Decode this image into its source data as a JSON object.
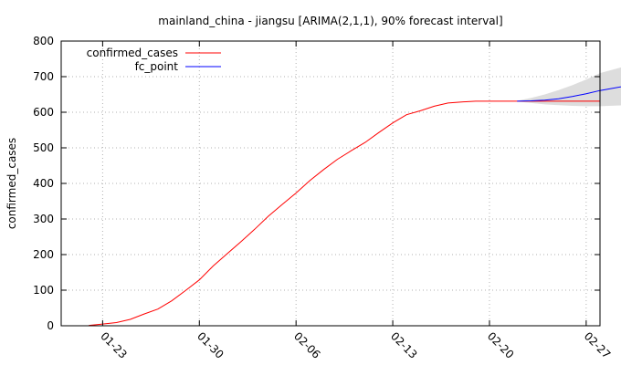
{
  "chart_data": {
    "type": "line",
    "title": "mainland_china - jiangsu [ARIMA(2,1,1), 90% forecast interval]",
    "xlabel": "",
    "ylabel": "confirmed_cases",
    "ylim": [
      0,
      800
    ],
    "yticks": [
      0,
      100,
      200,
      300,
      400,
      500,
      600,
      700,
      800
    ],
    "xlim": [
      "2020-01-20",
      "2020-02-28"
    ],
    "xticks": [
      "2020-01-23",
      "2020-01-30",
      "2020-02-06",
      "2020-02-13",
      "2020-02-20",
      "2020-02-27"
    ],
    "xtick_labels": [
      "01-23",
      "01-30",
      "02-06",
      "02-13",
      "02-20",
      "02-27"
    ],
    "grid": true,
    "legend_position": "top-left",
    "series": [
      {
        "name": "confirmed_cases",
        "color": "#ff0000",
        "points": [
          [
            "2020-01-22",
            1
          ],
          [
            "2020-01-23",
            5
          ],
          [
            "2020-01-24",
            9
          ],
          [
            "2020-01-25",
            18
          ],
          [
            "2020-01-26",
            33
          ],
          [
            "2020-01-27",
            47
          ],
          [
            "2020-01-28",
            70
          ],
          [
            "2020-01-29",
            99
          ],
          [
            "2020-01-30",
            129
          ],
          [
            "2020-01-31",
            168
          ],
          [
            "2020-02-01",
            202
          ],
          [
            "2020-02-02",
            236
          ],
          [
            "2020-02-03",
            271
          ],
          [
            "2020-02-04",
            308
          ],
          [
            "2020-02-05",
            341
          ],
          [
            "2020-02-06",
            373
          ],
          [
            "2020-02-07",
            408
          ],
          [
            "2020-02-08",
            439
          ],
          [
            "2020-02-09",
            468
          ],
          [
            "2020-02-10",
            492
          ],
          [
            "2020-02-11",
            515
          ],
          [
            "2020-02-12",
            543
          ],
          [
            "2020-02-13",
            570
          ],
          [
            "2020-02-14",
            593
          ],
          [
            "2020-02-15",
            604
          ],
          [
            "2020-02-16",
            617
          ],
          [
            "2020-02-17",
            626
          ],
          [
            "2020-02-18",
            629
          ],
          [
            "2020-02-19",
            631
          ],
          [
            "2020-02-20",
            631
          ],
          [
            "2020-02-21",
            631
          ],
          [
            "2020-02-22",
            631
          ],
          [
            "2020-02-23",
            631
          ],
          [
            "2020-02-24",
            631
          ],
          [
            "2020-02-25",
            631
          ],
          [
            "2020-02-26",
            631
          ],
          [
            "2020-02-27",
            631
          ],
          [
            "2020-02-28",
            631
          ]
        ]
      },
      {
        "name": "fc_point",
        "color": "#0000ff",
        "points": [
          [
            "2020-02-22",
            631
          ],
          [
            "2020-02-23",
            632
          ],
          [
            "2020-02-24",
            634
          ],
          [
            "2020-02-25",
            638
          ],
          [
            "2020-02-26",
            644
          ],
          [
            "2020-02-27",
            652
          ],
          [
            "2020-02-28",
            661
          ],
          [
            "2020-03-01",
            675
          ]
        ]
      }
    ],
    "forecast_interval": {
      "level": "90%",
      "color": "#dddddd",
      "x": [
        "2020-02-22",
        "2020-02-23",
        "2020-02-24",
        "2020-02-25",
        "2020-02-26",
        "2020-02-27",
        "2020-02-28",
        "2020-03-01"
      ],
      "lower": [
        630,
        626,
        622,
        620,
        618,
        617,
        617,
        620
      ],
      "upper": [
        632,
        640,
        650,
        662,
        676,
        692,
        710,
        731
      ]
    }
  }
}
